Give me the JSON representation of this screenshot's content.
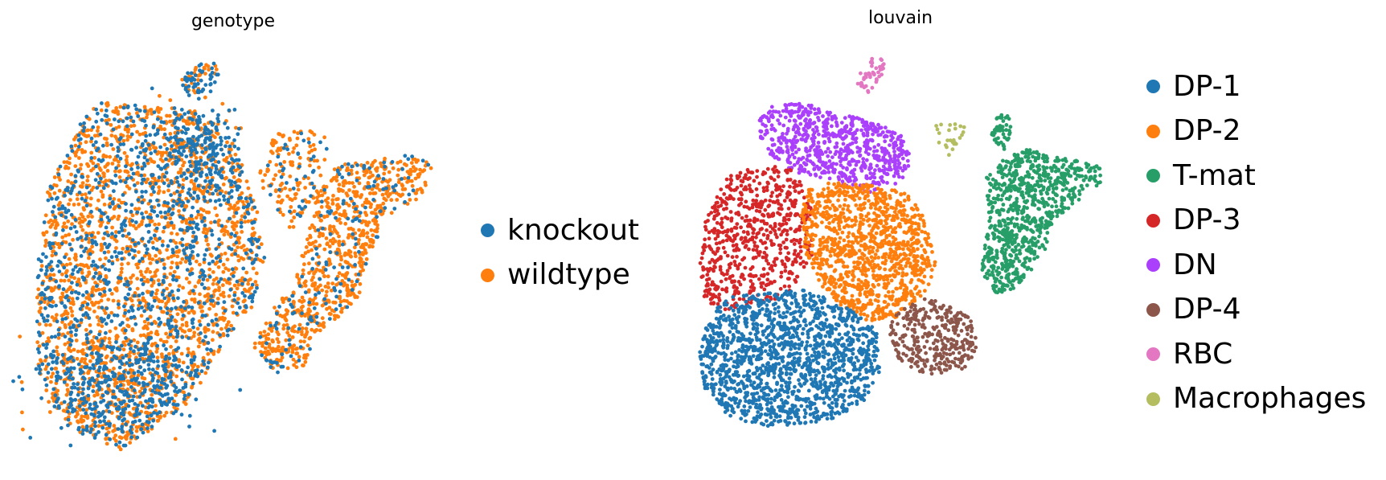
{
  "chart_data": [
    {
      "type": "scatter",
      "title": "genotype",
      "xlabel": "",
      "ylabel": "",
      "grid": false,
      "axes_visible": false,
      "legend_position": "right",
      "series": [
        {
          "name": "knockout",
          "color": "#1f77b4"
        },
        {
          "name": "wildtype",
          "color": "#ff7f0e"
        }
      ]
    },
    {
      "type": "scatter",
      "title": "louvain",
      "xlabel": "",
      "ylabel": "",
      "grid": false,
      "axes_visible": false,
      "legend_position": "right",
      "series": [
        {
          "name": "DP-1",
          "color": "#1f77b4"
        },
        {
          "name": "DP-2",
          "color": "#ff7f0e"
        },
        {
          "name": "T-mat",
          "color": "#279e68"
        },
        {
          "name": "DP-3",
          "color": "#d62728"
        },
        {
          "name": "DN",
          "color": "#aa40fc"
        },
        {
          "name": "DP-4",
          "color": "#8c564b"
        },
        {
          "name": "RBC",
          "color": "#e377c2"
        },
        {
          "name": "Macrophages",
          "color": "#b5bd61"
        }
      ]
    }
  ]
}
